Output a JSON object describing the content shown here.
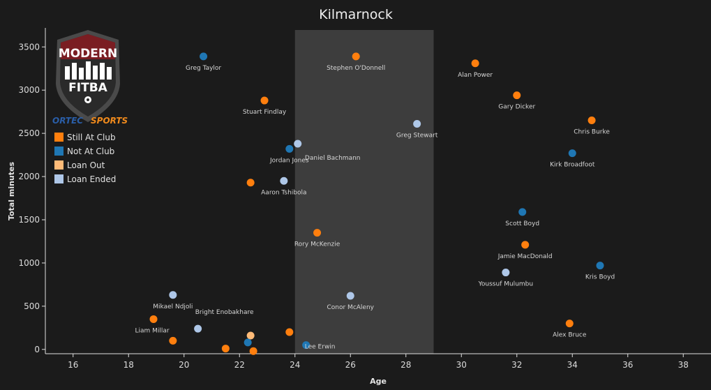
{
  "chart_data": {
    "type": "scatter",
    "title": "Kilmarnock",
    "xlabel": "Age",
    "ylabel": "Total minutes",
    "xlim": [
      15,
      39
    ],
    "ylim": [
      -50,
      3720
    ],
    "xticks": [
      16,
      18,
      20,
      22,
      24,
      26,
      28,
      30,
      32,
      34,
      36,
      38
    ],
    "yticks": [
      0,
      500,
      1000,
      1500,
      2000,
      2500,
      3000,
      3500
    ],
    "grid": false,
    "highlight_band": {
      "x0": 24,
      "x1": 29,
      "color": "#3d3d3d"
    },
    "legend_placement": "top-left",
    "categories": [
      {
        "name": "Still At Club",
        "color": "#ff7f0e"
      },
      {
        "name": "Not At Club",
        "color": "#1f77b4"
      },
      {
        "name": "Loan Out",
        "color": "#ffbb78"
      },
      {
        "name": "Loan Ended",
        "color": "#aec7e8"
      }
    ],
    "points": [
      {
        "label": "Greg Taylor",
        "x": 20.7,
        "y": 3390,
        "cat": 1
      },
      {
        "label": "Stephen O'Donnell",
        "x": 26.2,
        "y": 3390,
        "cat": 0
      },
      {
        "label": "Alan Power",
        "x": 30.5,
        "y": 3310,
        "cat": 0
      },
      {
        "label": "Gary Dicker",
        "x": 32.0,
        "y": 2940,
        "cat": 0
      },
      {
        "label": "Stuart Findlay",
        "x": 22.9,
        "y": 2880,
        "cat": 0
      },
      {
        "label": "Chris Burke",
        "x": 34.7,
        "y": 2650,
        "cat": 0
      },
      {
        "label": "Greg Stewart",
        "x": 28.4,
        "y": 2610,
        "cat": 3
      },
      {
        "label": "Daniel Bachmann",
        "x": 24.1,
        "y": 2380,
        "cat": 3
      },
      {
        "label": "Jordan Jones",
        "x": 23.8,
        "y": 2320,
        "cat": 1
      },
      {
        "label": "Kirk Broadfoot",
        "x": 34.0,
        "y": 2270,
        "cat": 1
      },
      {
        "label": "Aaron Tshibola",
        "x": 23.6,
        "y": 1950,
        "cat": 3
      },
      {
        "label": "",
        "x": 22.4,
        "y": 1930,
        "cat": 0
      },
      {
        "label": "Scott Boyd",
        "x": 32.2,
        "y": 1590,
        "cat": 1
      },
      {
        "label": "Rory McKenzie",
        "x": 24.8,
        "y": 1350,
        "cat": 0
      },
      {
        "label": "Jamie MacDonald",
        "x": 32.3,
        "y": 1210,
        "cat": 0
      },
      {
        "label": "Kris Boyd",
        "x": 35.0,
        "y": 970,
        "cat": 1
      },
      {
        "label": "Youssuf Mulumbu",
        "x": 31.6,
        "y": 890,
        "cat": 3
      },
      {
        "label": "Mikael Ndjoli",
        "x": 19.6,
        "y": 630,
        "cat": 3
      },
      {
        "label": "Conor McAleny",
        "x": 26.0,
        "y": 620,
        "cat": 3
      },
      {
        "label": "Liam Millar",
        "x": 18.9,
        "y": 350,
        "cat": 0
      },
      {
        "label": "Alex Bruce",
        "x": 33.9,
        "y": 300,
        "cat": 0
      },
      {
        "label": "Bright Enobakhare",
        "x": 20.5,
        "y": 240,
        "cat": 3
      },
      {
        "label": "Lee Erwin",
        "x": 24.4,
        "y": 50,
        "cat": 1
      },
      {
        "label": "",
        "x": 23.8,
        "y": 200,
        "cat": 0
      },
      {
        "label": "",
        "x": 22.4,
        "y": 160,
        "cat": 2
      },
      {
        "label": "",
        "x": 19.6,
        "y": 100,
        "cat": 0
      },
      {
        "label": "",
        "x": 22.3,
        "y": 80,
        "cat": 1
      },
      {
        "label": "",
        "x": 21.5,
        "y": 10,
        "cat": 0
      },
      {
        "label": "",
        "x": 22.5,
        "y": -20,
        "cat": 0
      }
    ]
  },
  "logo": {
    "line1": "MODERN",
    "line2": "FITBA",
    "sponsor_a": "ORTEC",
    "sponsor_b": "SPORTS"
  }
}
